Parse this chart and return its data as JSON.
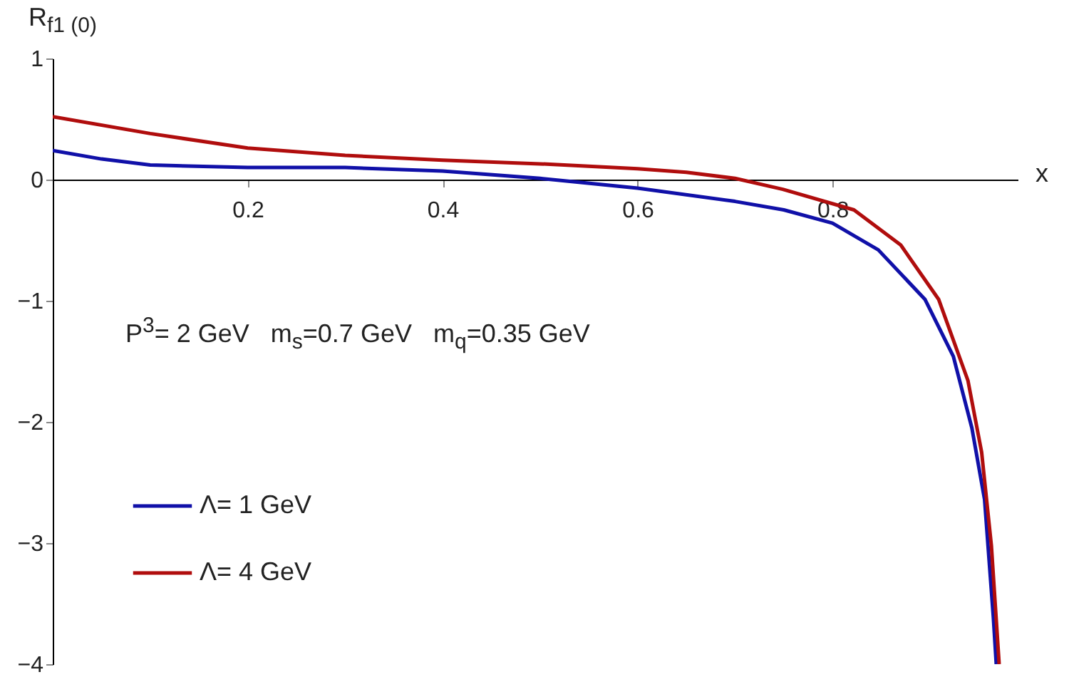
{
  "chart_data": {
    "type": "line",
    "xlabel": "x",
    "ylabel": "R$_{f1 (0)}$",
    "annotations": [
      "P$^{3}$= 2 GeV   m$_{s}$=0.7 GeV   m$_{q}$=0.35 GeV"
    ],
    "xlim": [
      0,
      0.99
    ],
    "xticks": [
      0.2,
      0.4,
      0.6,
      0.8
    ],
    "ylim": [
      -4,
      1
    ],
    "yticks": [
      -4,
      -3,
      -2,
      -1,
      0,
      1
    ],
    "grid": false,
    "legend": "bottom left",
    "series": [
      {
        "name": "Λ= 1 GeV",
        "color": "#1010a8",
        "x": [
          0,
          0.05,
          0.1,
          0.2,
          0.3,
          0.4,
          0.5,
          0.6,
          0.7,
          0.75,
          0.8,
          0.847,
          0.895,
          0.924,
          0.943,
          0.956,
          0.965,
          0.968
        ],
        "values": [
          0.24,
          0.17,
          0.12,
          0.1,
          0.1,
          0.07,
          0.01,
          -0.07,
          -0.18,
          -0.25,
          -0.36,
          -0.58,
          -0.99,
          -1.46,
          -2.05,
          -2.64,
          -3.61,
          -4
        ]
      },
      {
        "name": "Λ= 4 GeV",
        "color": "#b00d0d",
        "x": [
          0,
          0.1,
          0.2,
          0.3,
          0.4,
          0.5,
          0.6,
          0.65,
          0.7,
          0.749,
          0.822,
          0.87,
          0.909,
          0.939,
          0.953,
          0.963,
          0.971
        ],
        "values": [
          0.52,
          0.38,
          0.26,
          0.2,
          0.16,
          0.13,
          0.09,
          0.06,
          0.01,
          -0.08,
          -0.25,
          -0.54,
          -0.99,
          -1.66,
          -2.25,
          -3.02,
          -4
        ]
      }
    ]
  }
}
